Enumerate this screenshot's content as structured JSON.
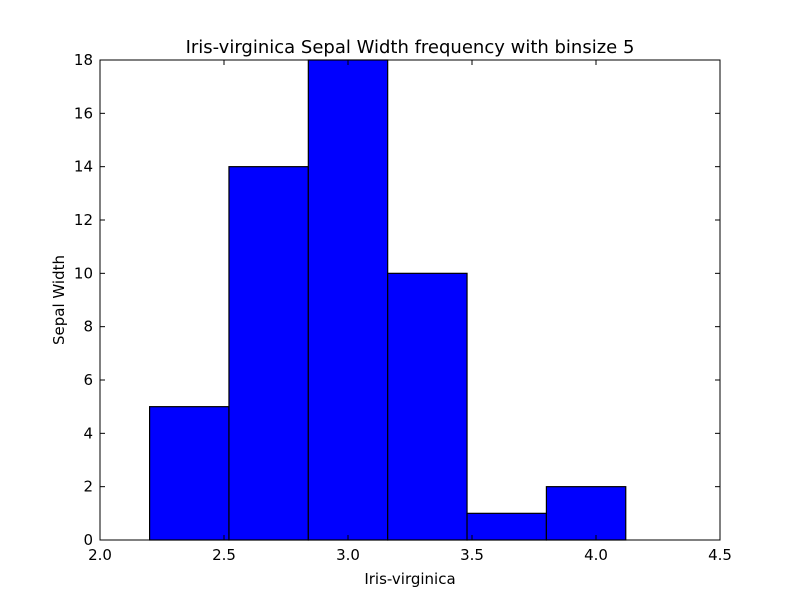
{
  "chart_data": {
    "type": "bar",
    "title": "Iris-virginica Sepal Width frequency with binsize 5",
    "xlabel": "Iris-virginica",
    "ylabel": "Sepal Width",
    "xlim": [
      2.0,
      4.5
    ],
    "ylim": [
      0,
      18
    ],
    "x_ticks": [
      "2.0",
      "2.5",
      "3.0",
      "3.5",
      "4.0",
      "4.5"
    ],
    "y_ticks": [
      "0",
      "2",
      "4",
      "6",
      "8",
      "10",
      "12",
      "14",
      "16",
      "18"
    ],
    "bin_edges": [
      2.2,
      2.52,
      2.84,
      3.16,
      3.48,
      3.8,
      4.12
    ],
    "values": [
      5,
      14,
      18,
      10,
      1,
      2
    ],
    "bar_color": "#0000ff",
    "edge_color": "#000000",
    "grid": false,
    "legend": "none"
  }
}
